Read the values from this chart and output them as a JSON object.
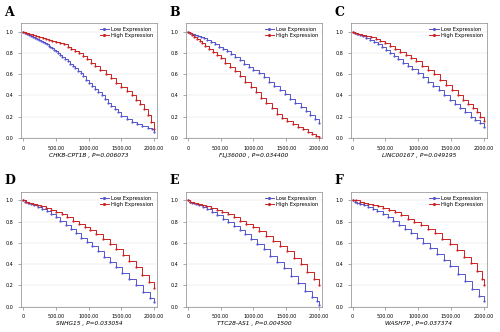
{
  "panels": [
    {
      "label": "A",
      "title": "CHKB-CPT1B , P=0.006073",
      "low_x": [
        0,
        30,
        60,
        90,
        120,
        150,
        180,
        210,
        240,
        270,
        300,
        330,
        360,
        390,
        420,
        450,
        480,
        510,
        540,
        570,
        600,
        640,
        680,
        720,
        760,
        800,
        840,
        880,
        920,
        960,
        1000,
        1050,
        1100,
        1150,
        1200,
        1250,
        1300,
        1350,
        1400,
        1450,
        1500,
        1580,
        1660,
        1740,
        1820,
        1900,
        1960,
        2000
      ],
      "low_y": [
        1.0,
        0.99,
        0.98,
        0.97,
        0.96,
        0.95,
        0.94,
        0.93,
        0.92,
        0.91,
        0.9,
        0.89,
        0.88,
        0.87,
        0.86,
        0.85,
        0.83,
        0.82,
        0.8,
        0.78,
        0.76,
        0.74,
        0.72,
        0.7,
        0.68,
        0.66,
        0.63,
        0.61,
        0.58,
        0.55,
        0.52,
        0.49,
        0.46,
        0.43,
        0.4,
        0.37,
        0.33,
        0.3,
        0.27,
        0.24,
        0.21,
        0.18,
        0.15,
        0.13,
        0.11,
        0.09,
        0.08,
        0.06
      ],
      "high_x": [
        0,
        50,
        100,
        150,
        200,
        250,
        300,
        350,
        400,
        450,
        500,
        560,
        620,
        680,
        740,
        800,
        860,
        920,
        980,
        1040,
        1100,
        1180,
        1260,
        1340,
        1420,
        1500,
        1580,
        1660,
        1720,
        1780,
        1840,
        1900,
        1950,
        2000
      ],
      "high_y": [
        1.0,
        0.99,
        0.98,
        0.97,
        0.96,
        0.95,
        0.94,
        0.93,
        0.92,
        0.91,
        0.9,
        0.89,
        0.88,
        0.86,
        0.84,
        0.82,
        0.8,
        0.77,
        0.74,
        0.71,
        0.68,
        0.64,
        0.6,
        0.56,
        0.52,
        0.48,
        0.44,
        0.4,
        0.36,
        0.32,
        0.27,
        0.22,
        0.15,
        0.08
      ]
    },
    {
      "label": "B",
      "title": "FLJ36000 , P=0.034400",
      "low_x": [
        0,
        30,
        70,
        110,
        150,
        200,
        250,
        300,
        360,
        420,
        480,
        540,
        600,
        660,
        720,
        790,
        860,
        930,
        1000,
        1080,
        1160,
        1240,
        1320,
        1400,
        1480,
        1560,
        1640,
        1720,
        1800,
        1870,
        1940,
        2000
      ],
      "low_y": [
        1.0,
        0.99,
        0.98,
        0.97,
        0.96,
        0.95,
        0.94,
        0.92,
        0.9,
        0.88,
        0.86,
        0.84,
        0.82,
        0.79,
        0.76,
        0.73,
        0.7,
        0.67,
        0.64,
        0.61,
        0.57,
        0.53,
        0.49,
        0.45,
        0.41,
        0.37,
        0.33,
        0.29,
        0.25,
        0.22,
        0.18,
        0.14
      ],
      "high_x": [
        0,
        30,
        60,
        100,
        140,
        180,
        220,
        270,
        320,
        380,
        440,
        500,
        570,
        640,
        720,
        800,
        880,
        960,
        1040,
        1120,
        1200,
        1280,
        1360,
        1440,
        1520,
        1600,
        1680,
        1760,
        1840,
        1900,
        1960,
        2000
      ],
      "high_y": [
        1.0,
        0.99,
        0.97,
        0.95,
        0.93,
        0.91,
        0.89,
        0.87,
        0.84,
        0.81,
        0.78,
        0.75,
        0.71,
        0.67,
        0.63,
        0.58,
        0.53,
        0.48,
        0.43,
        0.38,
        0.33,
        0.28,
        0.23,
        0.19,
        0.16,
        0.13,
        0.1,
        0.08,
        0.06,
        0.04,
        0.02,
        0.01
      ]
    },
    {
      "label": "C",
      "title": "LINC00167 , P=0.049195",
      "low_x": [
        0,
        30,
        70,
        110,
        160,
        210,
        270,
        330,
        390,
        450,
        510,
        570,
        630,
        700,
        770,
        840,
        910,
        990,
        1070,
        1150,
        1230,
        1310,
        1400,
        1480,
        1560,
        1640,
        1720,
        1800,
        1870,
        1940,
        2000
      ],
      "low_y": [
        1.0,
        0.99,
        0.98,
        0.97,
        0.96,
        0.94,
        0.92,
        0.9,
        0.88,
        0.86,
        0.83,
        0.8,
        0.77,
        0.74,
        0.71,
        0.68,
        0.65,
        0.61,
        0.57,
        0.53,
        0.49,
        0.45,
        0.4,
        0.36,
        0.32,
        0.28,
        0.24,
        0.2,
        0.17,
        0.14,
        0.1
      ],
      "high_x": [
        0,
        40,
        90,
        150,
        210,
        280,
        350,
        420,
        490,
        570,
        650,
        730,
        810,
        890,
        970,
        1060,
        1150,
        1240,
        1330,
        1420,
        1510,
        1600,
        1680,
        1760,
        1830,
        1900,
        1950,
        2000
      ],
      "high_y": [
        1.0,
        0.99,
        0.98,
        0.97,
        0.96,
        0.95,
        0.93,
        0.91,
        0.89,
        0.87,
        0.84,
        0.81,
        0.78,
        0.75,
        0.72,
        0.68,
        0.64,
        0.6,
        0.55,
        0.5,
        0.45,
        0.4,
        0.36,
        0.32,
        0.28,
        0.24,
        0.2,
        0.16
      ]
    },
    {
      "label": "D",
      "title": "SNHG15 , P=0.033054",
      "low_x": [
        0,
        30,
        70,
        120,
        170,
        230,
        290,
        360,
        430,
        500,
        570,
        650,
        730,
        810,
        890,
        970,
        1060,
        1150,
        1240,
        1330,
        1420,
        1510,
        1610,
        1720,
        1830,
        1940,
        2000
      ],
      "low_y": [
        1.0,
        0.99,
        0.98,
        0.97,
        0.96,
        0.94,
        0.92,
        0.9,
        0.87,
        0.84,
        0.81,
        0.77,
        0.73,
        0.69,
        0.65,
        0.61,
        0.57,
        0.52,
        0.47,
        0.42,
        0.37,
        0.32,
        0.26,
        0.2,
        0.14,
        0.08,
        0.04
      ],
      "high_x": [
        0,
        40,
        90,
        150,
        210,
        280,
        350,
        430,
        510,
        590,
        670,
        760,
        850,
        940,
        1030,
        1120,
        1220,
        1320,
        1420,
        1520,
        1620,
        1720,
        1820,
        1920,
        2000
      ],
      "high_y": [
        1.0,
        0.99,
        0.98,
        0.97,
        0.96,
        0.95,
        0.93,
        0.91,
        0.89,
        0.87,
        0.84,
        0.81,
        0.78,
        0.75,
        0.72,
        0.68,
        0.64,
        0.59,
        0.54,
        0.49,
        0.43,
        0.37,
        0.3,
        0.23,
        0.18
      ]
    },
    {
      "label": "E",
      "title": "TTC28-AS1 , P=0.004500",
      "low_x": [
        0,
        30,
        70,
        120,
        170,
        230,
        300,
        370,
        450,
        530,
        610,
        700,
        790,
        880,
        970,
        1060,
        1160,
        1260,
        1360,
        1460,
        1570,
        1680,
        1790,
        1900,
        1970,
        2000
      ],
      "low_y": [
        1.0,
        0.99,
        0.98,
        0.97,
        0.96,
        0.94,
        0.92,
        0.89,
        0.86,
        0.83,
        0.8,
        0.76,
        0.72,
        0.68,
        0.64,
        0.59,
        0.54,
        0.48,
        0.42,
        0.36,
        0.29,
        0.22,
        0.15,
        0.09,
        0.05,
        0.02
      ],
      "high_x": [
        0,
        40,
        90,
        150,
        210,
        280,
        360,
        440,
        520,
        610,
        700,
        790,
        890,
        990,
        1090,
        1190,
        1300,
        1410,
        1510,
        1620,
        1720,
        1820,
        1920,
        2000
      ],
      "high_y": [
        1.0,
        0.99,
        0.98,
        0.97,
        0.96,
        0.95,
        0.93,
        0.91,
        0.89,
        0.87,
        0.84,
        0.81,
        0.78,
        0.75,
        0.71,
        0.67,
        0.62,
        0.57,
        0.52,
        0.46,
        0.4,
        0.33,
        0.26,
        0.2
      ]
    },
    {
      "label": "F",
      "title": "WASH7P , P=0.037374",
      "low_x": [
        0,
        30,
        70,
        120,
        180,
        240,
        310,
        380,
        460,
        540,
        620,
        710,
        800,
        890,
        980,
        1080,
        1180,
        1280,
        1390,
        1490,
        1600,
        1710,
        1820,
        1930,
        2000
      ],
      "low_y": [
        1.0,
        0.99,
        0.98,
        0.97,
        0.96,
        0.94,
        0.92,
        0.9,
        0.87,
        0.84,
        0.81,
        0.77,
        0.73,
        0.69,
        0.65,
        0.6,
        0.55,
        0.5,
        0.44,
        0.38,
        0.31,
        0.24,
        0.17,
        0.1,
        0.05
      ],
      "high_x": [
        0,
        50,
        110,
        170,
        240,
        310,
        390,
        470,
        560,
        650,
        740,
        840,
        940,
        1040,
        1150,
        1260,
        1370,
        1480,
        1590,
        1700,
        1800,
        1900,
        1970,
        2000
      ],
      "high_y": [
        1.0,
        1.0,
        0.99,
        0.98,
        0.97,
        0.96,
        0.95,
        0.93,
        0.91,
        0.89,
        0.86,
        0.83,
        0.8,
        0.77,
        0.73,
        0.69,
        0.64,
        0.59,
        0.53,
        0.47,
        0.41,
        0.34,
        0.26,
        0.2
      ]
    }
  ],
  "low_color": "#5555cc",
  "high_color": "#cc2222",
  "bg_color": "#ffffff",
  "outer_bg": "#ffffff",
  "xticks": [
    0,
    500,
    1000,
    1500,
    2000
  ],
  "xtick_labels": [
    "0",
    "500.00",
    "1000.00",
    "1500.00",
    "2000.00"
  ],
  "yticks": [
    0.0,
    0.2,
    0.4,
    0.6,
    0.8,
    1.0
  ],
  "ytick_labels": [
    "0.0",
    "0.2",
    "0.4",
    "0.6",
    "0.8",
    "1.0"
  ],
  "legend_low": "Low Expression",
  "legend_high": "High Expression"
}
